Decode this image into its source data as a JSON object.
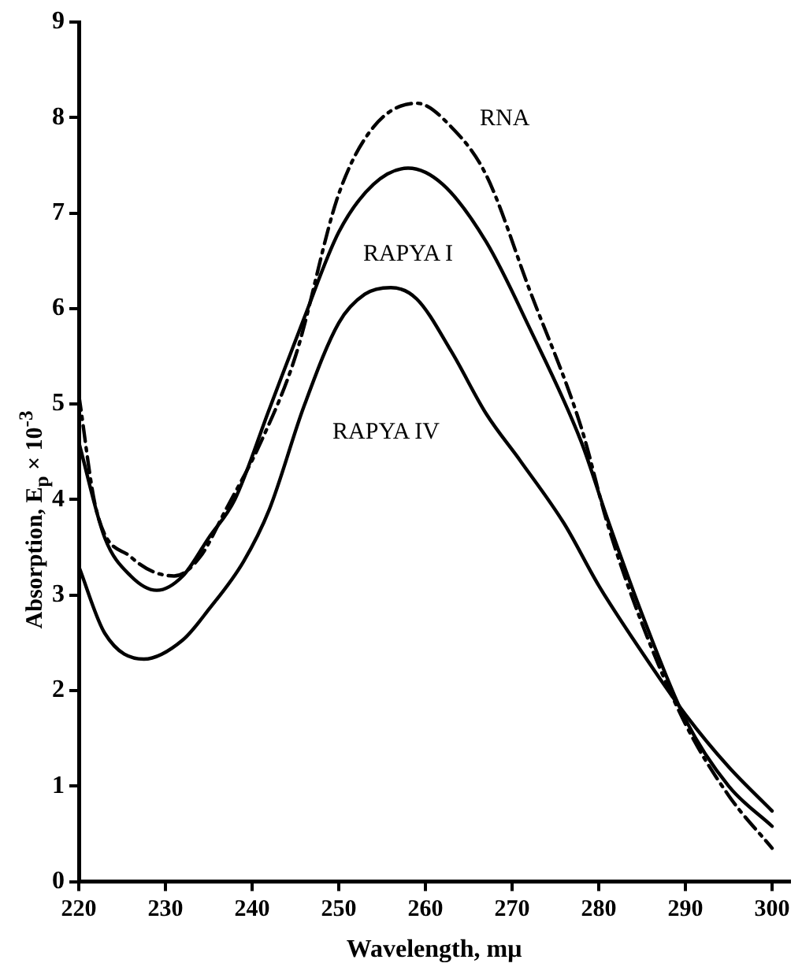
{
  "chart_data": {
    "type": "line",
    "xlabel": "Wavelength, mμ",
    "ylabel": "Absorption, E$_{p}$ × 10$^{-3}$",
    "xlim": [
      220,
      302
    ],
    "ylim": [
      0,
      9
    ],
    "xticks": [
      220,
      230,
      240,
      250,
      260,
      270,
      280,
      290,
      300
    ],
    "yticks": [
      0,
      1,
      2,
      3,
      4,
      5,
      6,
      7,
      8,
      9
    ],
    "grid": false,
    "legend": false,
    "marker": "none",
    "series": [
      {
        "name": "RNA",
        "color": "#000000",
        "line_style": "dashed",
        "x": [
          220,
          222,
          226,
          231,
          234,
          237,
          241,
          245,
          250,
          254,
          259,
          263,
          267,
          272,
          278,
          281,
          285,
          290,
          295,
          300
        ],
        "values": [
          5.1,
          3.9,
          3.4,
          3.2,
          3.4,
          3.9,
          4.6,
          5.5,
          7.2,
          7.9,
          8.15,
          7.9,
          7.4,
          6.2,
          4.75,
          3.75,
          2.7,
          1.65,
          0.9,
          0.35
        ]
      },
      {
        "name": "RAPYA I",
        "color": "#000000",
        "line_style": "solid",
        "x": [
          220,
          223,
          226,
          229,
          232,
          235,
          238,
          242,
          246,
          250,
          254,
          258,
          262,
          267,
          272,
          278,
          281,
          285,
          290,
          295,
          300
        ],
        "values": [
          4.6,
          3.6,
          3.2,
          3.05,
          3.2,
          3.6,
          4.0,
          4.95,
          5.9,
          6.8,
          7.3,
          7.47,
          7.3,
          6.7,
          5.8,
          4.6,
          3.8,
          2.8,
          1.7,
          1.0,
          0.58
        ]
      },
      {
        "name": "RAPYA IV",
        "color": "#000000",
        "line_style": "solid",
        "x": [
          220,
          223,
          227.5,
          232,
          235,
          239,
          242,
          246,
          250,
          253,
          256,
          259,
          263,
          267,
          271,
          276,
          280,
          285,
          290,
          295,
          300
        ],
        "values": [
          3.3,
          2.6,
          2.33,
          2.53,
          2.85,
          3.35,
          3.9,
          4.98,
          5.85,
          6.15,
          6.22,
          6.1,
          5.55,
          4.9,
          4.4,
          3.75,
          3.1,
          2.4,
          1.75,
          1.2,
          0.74
        ]
      }
    ]
  }
}
